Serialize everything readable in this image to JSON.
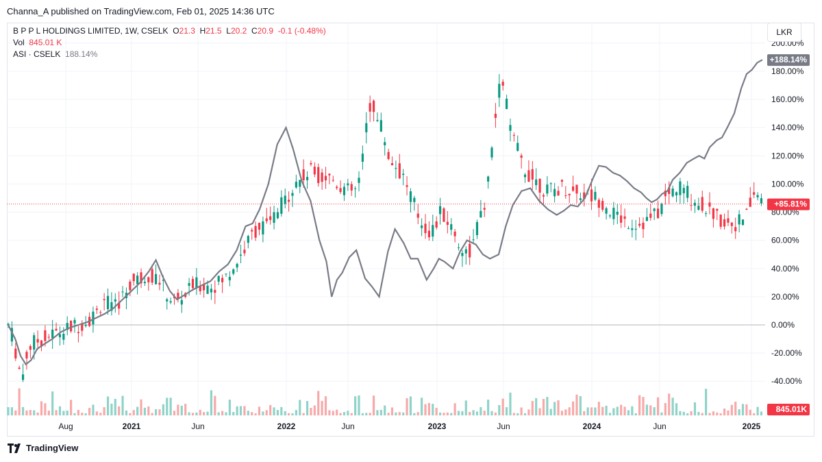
{
  "header": {
    "published": "Channa_A published on TradingView.com, Feb 01, 2025 14:36 UTC"
  },
  "legend": {
    "symbol": "B P P L HOLDINGS LIMITED, 1W, CSELK",
    "o_label": "O",
    "o_value": "21.3",
    "h_label": "H",
    "h_value": "21.5",
    "l_label": "L",
    "l_value": "20.2",
    "c_label": "C",
    "c_value": "20.9",
    "change": "-0.1 (-0.48%)",
    "vol_label": "Vol",
    "vol_value": "845.01 K",
    "compare_label": "ASI · CSELK",
    "compare_value": "188.14%"
  },
  "currency_button": "LKR",
  "brand": "TradingView",
  "colors": {
    "up": "#089981",
    "down": "#f23645",
    "compare_line": "#787b86",
    "vol_up": "#8fd3c8",
    "vol_down": "#f7a9a9"
  },
  "chart_data": {
    "type": "candlestick",
    "title": "B P P L HOLDINGS LIMITED, 1W, CSELK",
    "y_unit": "% change",
    "ylim": [
      -48,
      203
    ],
    "y_ticks": [
      "200.00%",
      "180.00%",
      "160.00%",
      "140.00%",
      "120.00%",
      "100.00%",
      "80.00%",
      "60.00%",
      "40.00%",
      "20.00%",
      "0.00%",
      "-20.00%",
      "-40.00%"
    ],
    "x_ticks": [
      "Aug",
      "2021",
      "Jun",
      "2022",
      "Jun",
      "2023",
      "Jun",
      "2024",
      "Jun",
      "2025"
    ],
    "x_tick_bold": [
      "2021",
      "2022",
      "2023",
      "2024",
      "2025"
    ],
    "last_price_label": "+85.81%",
    "last_price_value": 85.81,
    "compare_series": {
      "name": "ASI · CSELK",
      "last_label": "+188.14%",
      "values": [
        [
          0,
          0
        ],
        [
          8,
          -10
        ],
        [
          14,
          -22
        ],
        [
          20,
          -28
        ],
        [
          26,
          -25
        ],
        [
          33,
          -17
        ],
        [
          40,
          -14
        ],
        [
          50,
          -10
        ],
        [
          60,
          -5
        ],
        [
          70,
          -2
        ],
        [
          80,
          0
        ],
        [
          90,
          2
        ],
        [
          100,
          5
        ],
        [
          110,
          8
        ],
        [
          120,
          12
        ],
        [
          130,
          18
        ],
        [
          140,
          24
        ],
        [
          150,
          30
        ],
        [
          160,
          38
        ],
        [
          168,
          46
        ],
        [
          176,
          34
        ],
        [
          184,
          24
        ],
        [
          192,
          18
        ],
        [
          200,
          21
        ],
        [
          210,
          25
        ],
        [
          220,
          28
        ],
        [
          230,
          31
        ],
        [
          240,
          38
        ],
        [
          250,
          43
        ],
        [
          260,
          53
        ],
        [
          270,
          70
        ],
        [
          278,
          72
        ],
        [
          286,
          82
        ],
        [
          296,
          100
        ],
        [
          306,
          128
        ],
        [
          316,
          140
        ],
        [
          324,
          125
        ],
        [
          334,
          102
        ],
        [
          344,
          88
        ],
        [
          354,
          60
        ],
        [
          362,
          45
        ],
        [
          368,
          20
        ],
        [
          374,
          32
        ],
        [
          380,
          37
        ],
        [
          388,
          48
        ],
        [
          396,
          53
        ],
        [
          406,
          33
        ],
        [
          414,
          27
        ],
        [
          422,
          20
        ],
        [
          432,
          52
        ],
        [
          440,
          68
        ],
        [
          450,
          58
        ],
        [
          458,
          47
        ],
        [
          466,
          47
        ],
        [
          476,
          32
        ],
        [
          484,
          40
        ],
        [
          490,
          47
        ],
        [
          496,
          45
        ],
        [
          506,
          40
        ],
        [
          514,
          52
        ],
        [
          522,
          60
        ],
        [
          532,
          57
        ],
        [
          540,
          50
        ],
        [
          548,
          47
        ],
        [
          558,
          50
        ],
        [
          566,
          70
        ],
        [
          574,
          85
        ],
        [
          584,
          95
        ],
        [
          594,
          97
        ],
        [
          604,
          88
        ],
        [
          614,
          82
        ],
        [
          624,
          78
        ],
        [
          632,
          81
        ],
        [
          640,
          85
        ],
        [
          648,
          84
        ],
        [
          656,
          90
        ],
        [
          666,
          105
        ],
        [
          672,
          113
        ],
        [
          680,
          112
        ],
        [
          688,
          108
        ],
        [
          696,
          106
        ],
        [
          704,
          102
        ],
        [
          712,
          97
        ],
        [
          720,
          94
        ],
        [
          726,
          90
        ],
        [
          732,
          87
        ],
        [
          738,
          89
        ],
        [
          744,
          93
        ],
        [
          750,
          95
        ],
        [
          756,
          103
        ],
        [
          764,
          108
        ],
        [
          772,
          115
        ],
        [
          780,
          118
        ],
        [
          786,
          120
        ],
        [
          792,
          118
        ],
        [
          798,
          126
        ],
        [
          806,
          131
        ],
        [
          812,
          133
        ],
        [
          818,
          140
        ],
        [
          826,
          150
        ],
        [
          834,
          168
        ],
        [
          840,
          178
        ],
        [
          846,
          181
        ],
        [
          852,
          186
        ],
        [
          858,
          188.14
        ]
      ]
    },
    "volume": {
      "last_label": "845.01K"
    }
  }
}
